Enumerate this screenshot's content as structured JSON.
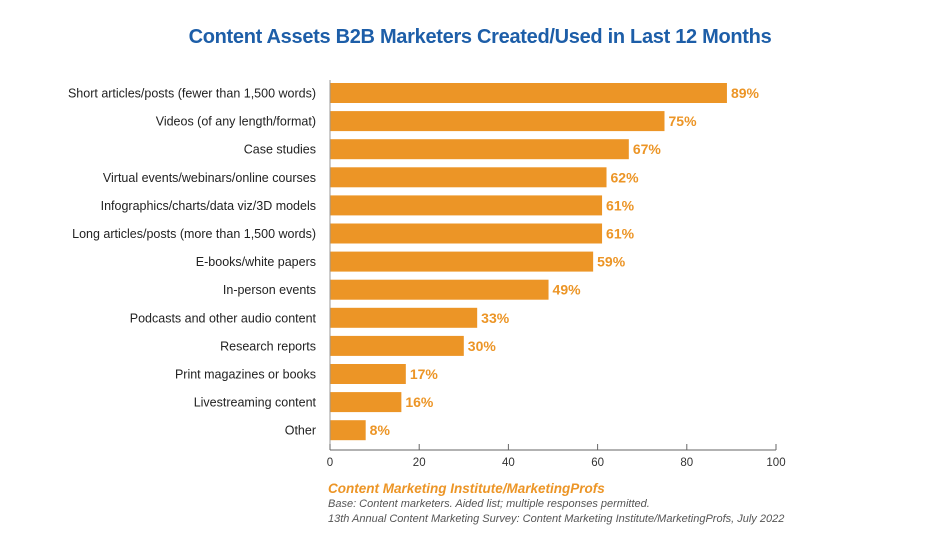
{
  "chart_data": {
    "type": "bar",
    "orientation": "horizontal",
    "title": "Content Assets B2B Marketers Created/Used in Last 12 Months",
    "categories": [
      "Short articles/posts (fewer than 1,500 words)",
      "Videos (of any length/format)",
      "Case studies",
      "Virtual events/webinars/online courses",
      "Infographics/charts/data viz/3D models",
      "Long articles/posts (more than 1,500 words)",
      "E-books/white papers",
      "In-person events",
      "Podcasts and other audio content",
      "Research reports",
      "Print magazines or books",
      "Livestreaming content",
      "Other"
    ],
    "values": [
      89,
      75,
      67,
      62,
      61,
      61,
      59,
      49,
      33,
      30,
      17,
      16,
      8
    ],
    "value_labels": [
      "89%",
      "75%",
      "67%",
      "62%",
      "61%",
      "61%",
      "59%",
      "49%",
      "33%",
      "30%",
      "17%",
      "16%",
      "8%"
    ],
    "xlim": [
      0,
      100
    ],
    "xticks": [
      "0",
      "20",
      "40",
      "60",
      "80",
      "100"
    ],
    "grid": false,
    "bar_color": "#ec9526",
    "title_color": "#1d5ea8"
  },
  "source": {
    "org": "Content Marketing Institute/MarketingProfs",
    "base": "Base: Content marketers. Aided list; multiple responses permitted.",
    "survey": "13th Annual Content Marketing Survey: Content Marketing Institute/MarketingProfs, July 2022"
  }
}
